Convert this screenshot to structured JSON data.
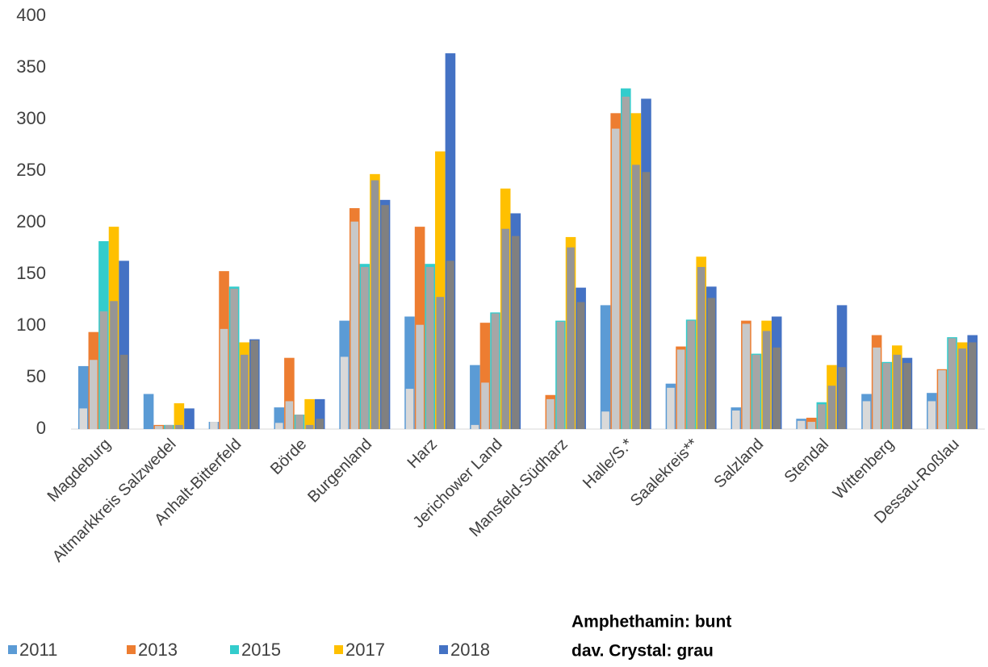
{
  "chart_data": {
    "type": "bar",
    "categories": [
      "Magdeburg",
      "Altmarkkreis Salzwedel",
      "Anhalt-Bitterfeld",
      "Börde",
      "Burgenland",
      "Harz",
      "Jerichower Land",
      "Mansfeld-Südharz",
      "Halle/S.*",
      "Saalekreis**",
      "Salzland",
      "Stendal",
      "Wittenberg",
      "Dessau-Roßlau"
    ],
    "series": [
      {
        "name": "2011",
        "color": "#5b9bd5",
        "crystal_color": "#d9d9d9",
        "values": [
          61,
          34,
          7,
          21,
          105,
          109,
          62,
          0,
          120,
          44,
          21,
          10,
          34,
          35
        ],
        "crystal_values": [
          20,
          0,
          7,
          6,
          70,
          39,
          4,
          0,
          17,
          40,
          18,
          8,
          27,
          27
        ]
      },
      {
        "name": "2013",
        "color": "#ed7d31",
        "crystal_color": "#c8c8c8",
        "values": [
          94,
          4,
          153,
          69,
          214,
          196,
          103,
          33,
          306,
          80,
          105,
          11,
          91,
          58
        ],
        "crystal_values": [
          67,
          3,
          97,
          27,
          201,
          101,
          45,
          29,
          291,
          77,
          102,
          7,
          79,
          57
        ]
      },
      {
        "name": "2015",
        "color": "#33cccc",
        "crystal_color": "#a6a6a6",
        "values": [
          182,
          4,
          138,
          14,
          160,
          160,
          113,
          105,
          330,
          106,
          73,
          26,
          65,
          89
        ],
        "crystal_values": [
          114,
          4,
          136,
          14,
          157,
          157,
          112,
          104,
          322,
          105,
          72,
          24,
          64,
          88
        ]
      },
      {
        "name": "2017",
        "color": "#ffc000",
        "crystal_color": "#959595",
        "values": [
          196,
          25,
          84,
          29,
          247,
          269,
          233,
          186,
          306,
          167,
          105,
          62,
          81,
          84
        ],
        "crystal_values": [
          124,
          4,
          72,
          4,
          241,
          128,
          194,
          176,
          256,
          157,
          95,
          42,
          72,
          78
        ]
      },
      {
        "name": "2018",
        "color": "#4472c4",
        "crystal_color": "#808080",
        "values": [
          163,
          20,
          87,
          29,
          222,
          364,
          209,
          137,
          320,
          138,
          109,
          120,
          69,
          91
        ],
        "crystal_values": [
          72,
          0,
          86,
          10,
          217,
          163,
          187,
          123,
          249,
          127,
          79,
          60,
          64,
          84
        ]
      }
    ],
    "ylim": [
      0,
      400
    ],
    "yticks": [
      0,
      50,
      100,
      150,
      200,
      250,
      300,
      350,
      400
    ],
    "grid": false,
    "annotations": [
      "Amphethamin: bunt",
      "dav. Crystal: grau"
    ]
  }
}
